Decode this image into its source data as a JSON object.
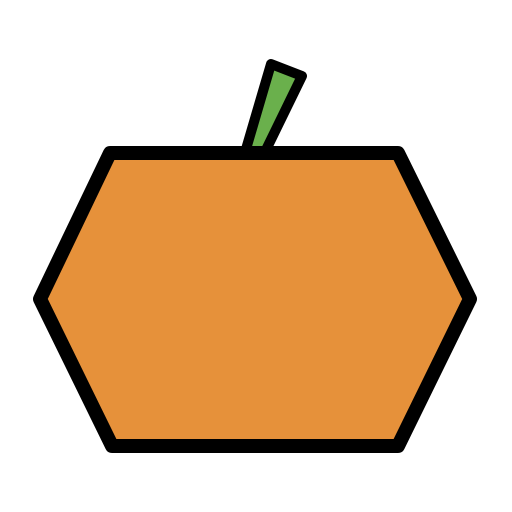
{
  "icon": {
    "name": "pumpkin-icon",
    "colors": {
      "body_fill": "#E6913A",
      "stem_fill": "#6AB04C",
      "outline": "#000000",
      "background": "#FFFFFF"
    }
  }
}
